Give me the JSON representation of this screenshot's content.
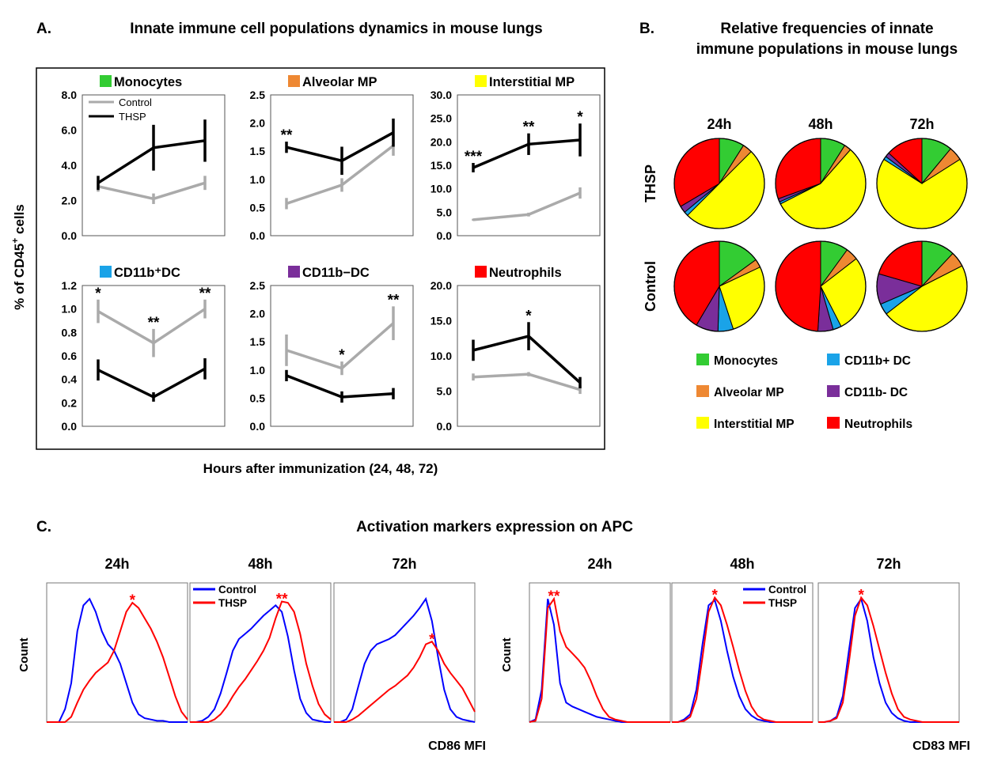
{
  "panel_a": {
    "letter": "A.",
    "title": "Innate immune cell populations dynamics in mouse lungs",
    "ylabel_main": "% of CD45",
    "ylabel_sup": "+",
    "ylabel_rest": " cells",
    "xlabel": "Hours after immunization (24, 48, 72)",
    "legend_control": "Control",
    "legend_thsp": "THSP"
  },
  "panel_b": {
    "letter": "B.",
    "title_line1": "Relative frequencies of innate",
    "title_line2": "immune populations in mouse lungs",
    "col_labels": [
      "24h",
      "48h",
      "72h"
    ],
    "row_labels": [
      "THSP",
      "Control"
    ],
    "legend": [
      {
        "label": "Monocytes",
        "color": "#33cc33"
      },
      {
        "label": "CD11b+ DC",
        "color": "#1aa3e8"
      },
      {
        "label": "Alveolar MP",
        "color": "#ee8833"
      },
      {
        "label": "CD11b- DC",
        "color": "#7a2e9a"
      },
      {
        "label": "Interstitial MP",
        "color": "#ffff00"
      },
      {
        "label": "Neutrophils",
        "color": "#ff0000"
      }
    ]
  },
  "panel_c": {
    "letter": "C.",
    "title": "Activation markers expression on APC",
    "time_labels": [
      "24h",
      "48h",
      "72h"
    ],
    "ylabel": "Count",
    "xlabel_left": "CD86 MFI",
    "xlabel_right": "CD83 MFI",
    "legend_control": "Control",
    "legend_thsp": "THSP",
    "sig_cd86": [
      "*",
      "**",
      "*"
    ],
    "sig_cd83": [
      "**",
      "*",
      "*"
    ],
    "control_color": "#0000ff",
    "thsp_color": "#ff0000"
  },
  "chart_data": [
    {
      "type": "line",
      "id": "monocytes",
      "title": "Monocytes",
      "title_color": "#33cc33",
      "ylim": [
        0,
        8
      ],
      "yticks": [
        "0.0",
        "2.0",
        "4.0",
        "6.0",
        "8.0"
      ],
      "x": [
        24,
        48,
        72
      ],
      "series": [
        {
          "name": "Control",
          "values": [
            2.8,
            2.1,
            3.0
          ],
          "err": [
            0.3,
            0.3,
            0.4
          ],
          "color": "#aaaaaa"
        },
        {
          "name": "THSP",
          "values": [
            3.0,
            5.0,
            5.4
          ],
          "err": [
            0.4,
            1.3,
            1.2
          ],
          "color": "#000000"
        }
      ],
      "sig": [
        {
          "idx": 0,
          "text": ""
        },
        {
          "idx": 1,
          "text": ""
        },
        {
          "idx": 2,
          "text": ""
        }
      ]
    },
    {
      "type": "line",
      "id": "alveolar",
      "title": "Alveolar MP",
      "title_color": "#ee8833",
      "ylim": [
        0,
        2.5
      ],
      "yticks": [
        "0.0",
        "0.5",
        "1.0",
        "1.5",
        "2.0",
        "2.5"
      ],
      "x": [
        24,
        48,
        72
      ],
      "series": [
        {
          "name": "Control",
          "values": [
            0.57,
            0.9,
            1.6
          ],
          "err": [
            0.1,
            0.12,
            0.18
          ],
          "color": "#aaaaaa"
        },
        {
          "name": "THSP",
          "values": [
            1.57,
            1.33,
            1.83
          ],
          "err": [
            0.1,
            0.25,
            0.25
          ],
          "color": "#000000"
        }
      ],
      "sig": [
        {
          "idx": 0,
          "text": "**"
        },
        {
          "idx": 1,
          "text": ""
        },
        {
          "idx": 2,
          "text": ""
        }
      ]
    },
    {
      "type": "line",
      "id": "interstitial",
      "title": "Interstitial MP",
      "title_color": "#ffff00",
      "ylim": [
        0,
        30
      ],
      "yticks": [
        "0.0",
        "5.0",
        "10.0",
        "15.0",
        "20.0",
        "25.0",
        "30.0"
      ],
      "x": [
        24,
        48,
        72
      ],
      "series": [
        {
          "name": "Control",
          "values": [
            3.4,
            4.5,
            9.1
          ],
          "err": [
            0.2,
            0.4,
            1.2
          ],
          "color": "#aaaaaa"
        },
        {
          "name": "THSP",
          "values": [
            14.5,
            19.5,
            20.4
          ],
          "err": [
            1.0,
            2.3,
            3.5
          ],
          "color": "#000000"
        }
      ],
      "sig": [
        {
          "idx": 0,
          "text": "***"
        },
        {
          "idx": 1,
          "text": "**"
        },
        {
          "idx": 2,
          "text": "*"
        }
      ]
    },
    {
      "type": "line",
      "id": "cd11bpos",
      "title": "CD11b⁺DC",
      "title_color": "#1aa3e8",
      "ylim": [
        0,
        1.2
      ],
      "yticks": [
        "0.0",
        "0.2",
        "0.4",
        "0.6",
        "0.8",
        "1.0",
        "1.2"
      ],
      "x": [
        24,
        48,
        72
      ],
      "series": [
        {
          "name": "Control",
          "values": [
            0.98,
            0.71,
            1.0
          ],
          "err": [
            0.1,
            0.12,
            0.08
          ],
          "color": "#aaaaaa"
        },
        {
          "name": "THSP",
          "values": [
            0.48,
            0.25,
            0.49
          ],
          "err": [
            0.09,
            0.04,
            0.09
          ],
          "color": "#000000"
        }
      ],
      "sig": [
        {
          "idx": 0,
          "text": "*"
        },
        {
          "idx": 1,
          "text": "**"
        },
        {
          "idx": 2,
          "text": "**"
        }
      ]
    },
    {
      "type": "line",
      "id": "cd11bneg",
      "title": "CD11b−DC",
      "title_color": "#7a2e9a",
      "ylim": [
        0,
        2.5
      ],
      "yticks": [
        "0.0",
        "0.5",
        "1.0",
        "1.5",
        "2.0",
        "2.5"
      ],
      "x": [
        24,
        48,
        72
      ],
      "series": [
        {
          "name": "Control",
          "values": [
            1.35,
            1.03,
            1.83
          ],
          "err": [
            0.28,
            0.12,
            0.3
          ],
          "color": "#aaaaaa"
        },
        {
          "name": "THSP",
          "values": [
            0.9,
            0.52,
            0.58
          ],
          "err": [
            0.1,
            0.1,
            0.1
          ],
          "color": "#000000"
        }
      ],
      "sig": [
        {
          "idx": 0,
          "text": ""
        },
        {
          "idx": 1,
          "text": "*"
        },
        {
          "idx": 2,
          "text": "**"
        }
      ]
    },
    {
      "type": "line",
      "id": "neutrophils",
      "title": "Neutrophils",
      "title_color": "#ff0000",
      "ylim": [
        0,
        20
      ],
      "yticks": [
        "0.0",
        "5.0",
        "10.0",
        "15.0",
        "20.0"
      ],
      "x": [
        24,
        48,
        72
      ],
      "series": [
        {
          "name": "Control",
          "values": [
            7.0,
            7.4,
            5.2
          ],
          "err": [
            0.5,
            0.3,
            0.6
          ],
          "color": "#aaaaaa"
        },
        {
          "name": "THSP",
          "values": [
            10.8,
            12.8,
            6.2
          ],
          "err": [
            1.5,
            2.0,
            0.8
          ],
          "color": "#000000"
        }
      ],
      "sig": [
        {
          "idx": 0,
          "text": ""
        },
        {
          "idx": 1,
          "text": "*"
        },
        {
          "idx": 2,
          "text": ""
        }
      ]
    },
    {
      "type": "pie",
      "id": "pies",
      "categories": [
        "Monocytes",
        "Alveolar MP",
        "Interstitial MP",
        "CD11b+ DC",
        "CD11b- DC",
        "Neutrophils"
      ],
      "rows": [
        {
          "group": "THSP",
          "times": [
            "24h",
            "48h",
            "72h"
          ],
          "values": [
            [
              9,
              3.5,
              50,
              1.5,
              2.5,
              33.5
            ],
            [
              9,
              2.5,
              56,
              0.8,
              1.2,
              30.5
            ],
            [
              11,
              5,
              68,
              1.2,
              1.6,
              13.2
            ]
          ]
        },
        {
          "group": "Control",
          "times": [
            "24h",
            "48h",
            "72h"
          ],
          "values": [
            [
              15,
              3,
              27,
              5.5,
              8,
              41.5
            ],
            [
              10,
              4.5,
              28,
              3,
              5.5,
              49
            ],
            [
              12,
              5.5,
              47,
              4,
              11,
              20.5
            ]
          ]
        }
      ]
    },
    {
      "type": "line",
      "id": "histograms",
      "title": "Activation markers expression on APC",
      "xlabel": [
        "CD86 MFI",
        "CD83 MFI"
      ],
      "ylabel": "Count",
      "series_names": [
        "Control",
        "THSP"
      ],
      "groups": [
        {
          "marker": "CD86 MFI",
          "panels": [
            {
              "time": "24h",
              "control": [
                0,
                0,
                0,
                0.1,
                0.3,
                0.7,
                0.9,
                0.95,
                0.85,
                0.7,
                0.6,
                0.55,
                0.45,
                0.3,
                0.15,
                0.06,
                0.03,
                0.02,
                0.01,
                0.01,
                0,
                0,
                0,
                0
              ],
              "thsp": [
                0,
                0,
                0,
                0,
                0.04,
                0.15,
                0.25,
                0.32,
                0.38,
                0.42,
                0.46,
                0.55,
                0.7,
                0.85,
                0.92,
                0.88,
                0.8,
                0.72,
                0.62,
                0.5,
                0.35,
                0.2,
                0.08,
                0.02
              ]
            },
            {
              "time": "48h",
              "control": [
                0,
                0,
                0.01,
                0.04,
                0.1,
                0.22,
                0.38,
                0.55,
                0.64,
                0.68,
                0.72,
                0.77,
                0.82,
                0.86,
                0.9,
                0.85,
                0.66,
                0.4,
                0.18,
                0.07,
                0.02,
                0.01,
                0,
                0
              ],
              "thsp": [
                0,
                0,
                0,
                0,
                0.02,
                0.06,
                0.12,
                0.2,
                0.27,
                0.33,
                0.4,
                0.47,
                0.55,
                0.65,
                0.8,
                0.93,
                0.92,
                0.85,
                0.68,
                0.45,
                0.28,
                0.14,
                0.06,
                0.02
              ]
            },
            {
              "time": "72h",
              "control": [
                0,
                0,
                0.02,
                0.1,
                0.28,
                0.45,
                0.55,
                0.6,
                0.62,
                0.64,
                0.67,
                0.72,
                0.77,
                0.82,
                0.88,
                0.95,
                0.78,
                0.5,
                0.25,
                0.1,
                0.04,
                0.02,
                0.01,
                0
              ],
              "thsp": [
                0,
                0,
                0,
                0.02,
                0.05,
                0.09,
                0.13,
                0.17,
                0.21,
                0.25,
                0.28,
                0.32,
                0.36,
                0.42,
                0.5,
                0.6,
                0.62,
                0.55,
                0.45,
                0.38,
                0.32,
                0.26,
                0.17,
                0.08
              ]
            }
          ]
        },
        {
          "marker": "CD83 MFI",
          "panels": [
            {
              "time": "24h",
              "control": [
                0,
                0.02,
                0.25,
                0.95,
                0.75,
                0.3,
                0.15,
                0.12,
                0.1,
                0.08,
                0.06,
                0.04,
                0.03,
                0.02,
                0.01,
                0,
                0,
                0,
                0,
                0,
                0,
                0,
                0,
                0
              ],
              "thsp": [
                0,
                0.01,
                0.18,
                0.88,
                0.95,
                0.7,
                0.58,
                0.53,
                0.48,
                0.42,
                0.32,
                0.2,
                0.1,
                0.04,
                0.02,
                0.01,
                0,
                0,
                0,
                0,
                0,
                0,
                0,
                0
              ]
            },
            {
              "time": "48h",
              "control": [
                0,
                0,
                0.02,
                0.06,
                0.25,
                0.6,
                0.9,
                0.94,
                0.78,
                0.55,
                0.35,
                0.2,
                0.1,
                0.05,
                0.02,
                0.01,
                0,
                0,
                0,
                0,
                0,
                0,
                0,
                0
              ],
              "thsp": [
                0,
                0,
                0.01,
                0.04,
                0.18,
                0.5,
                0.85,
                0.96,
                0.9,
                0.75,
                0.58,
                0.4,
                0.24,
                0.12,
                0.05,
                0.02,
                0.01,
                0,
                0,
                0,
                0,
                0,
                0,
                0
              ]
            },
            {
              "time": "72h",
              "control": [
                0,
                0,
                0.01,
                0.04,
                0.2,
                0.55,
                0.88,
                0.95,
                0.78,
                0.5,
                0.3,
                0.15,
                0.07,
                0.03,
                0.01,
                0,
                0,
                0,
                0,
                0,
                0,
                0,
                0,
                0
              ],
              "thsp": [
                0,
                0,
                0.01,
                0.03,
                0.15,
                0.46,
                0.82,
                0.96,
                0.9,
                0.74,
                0.56,
                0.38,
                0.22,
                0.1,
                0.04,
                0.02,
                0.01,
                0,
                0,
                0,
                0,
                0,
                0,
                0
              ]
            }
          ]
        }
      ]
    }
  ]
}
